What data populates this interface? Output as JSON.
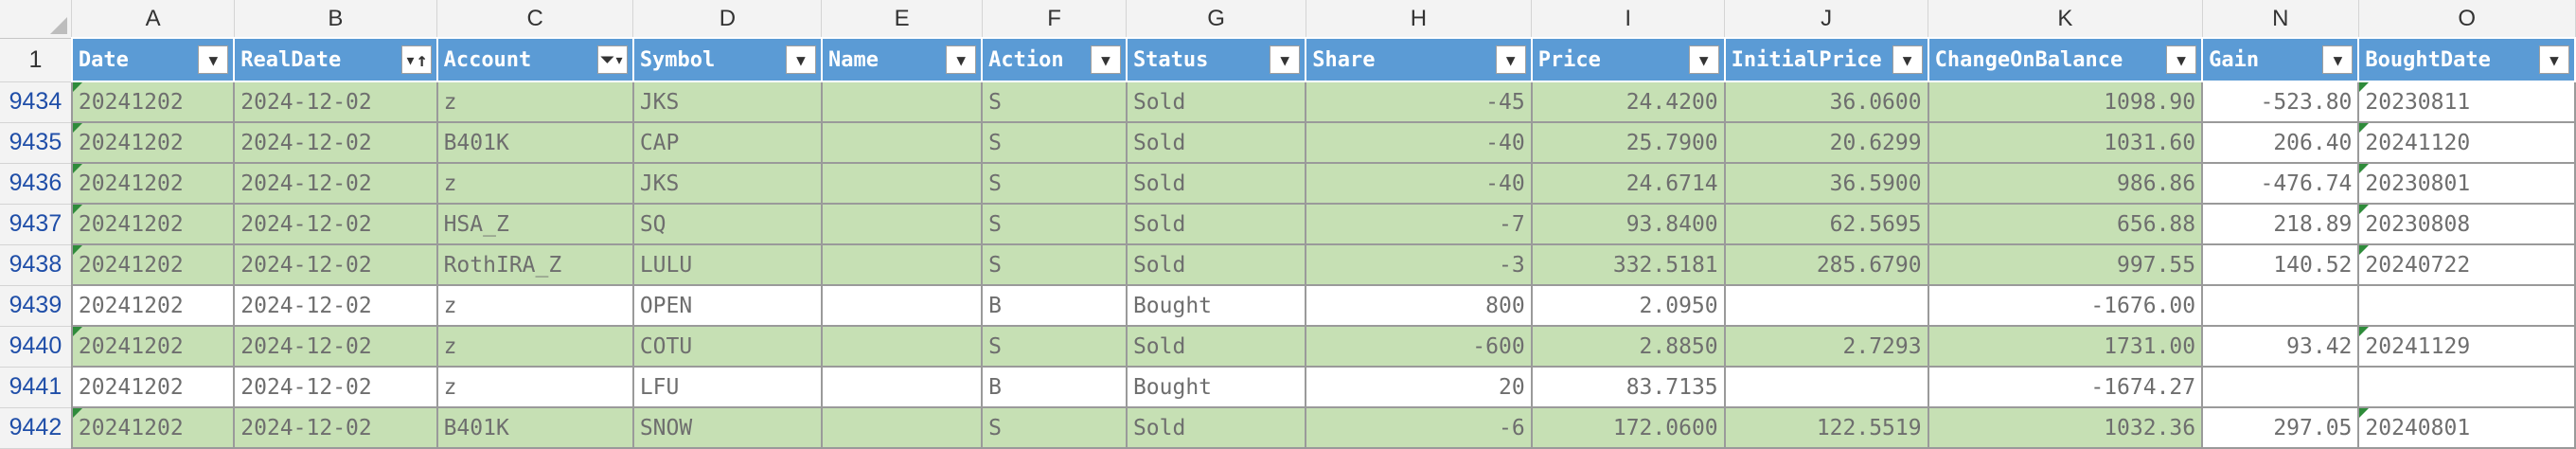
{
  "sheet": {
    "columns": [
      "A",
      "B",
      "C",
      "D",
      "E",
      "F",
      "G",
      "H",
      "I",
      "J",
      "K",
      "N",
      "O"
    ],
    "header_row_number": "1",
    "fields": [
      {
        "label": "Date",
        "button": "dropdown"
      },
      {
        "label": "RealDate",
        "button": "sort"
      },
      {
        "label": "Account",
        "button": "filter"
      },
      {
        "label": "Symbol",
        "button": "dropdown"
      },
      {
        "label": "Name",
        "button": "dropdown"
      },
      {
        "label": "Action",
        "button": "dropdown"
      },
      {
        "label": "Status",
        "button": "dropdown"
      },
      {
        "label": "Share",
        "button": "dropdown"
      },
      {
        "label": "Price",
        "button": "dropdown"
      },
      {
        "label": "InitialPrice",
        "button": "dropdown"
      },
      {
        "label": "ChangeOnBalance",
        "button": "dropdown"
      },
      {
        "label": "Gain",
        "button": "dropdown"
      },
      {
        "label": "BoughtDate",
        "button": "dropdown"
      }
    ],
    "rows": [
      {
        "num": "9434",
        "status_type": "sold",
        "cells": [
          "20241202",
          "2024-12-02",
          "z",
          "JKS",
          "",
          "S",
          "Sold",
          "-45",
          "24.4200",
          "36.0600",
          "1098.90",
          "-523.80",
          "20230811"
        ]
      },
      {
        "num": "9435",
        "status_type": "sold",
        "cells": [
          "20241202",
          "2024-12-02",
          "B401K",
          "CAP",
          "",
          "S",
          "Sold",
          "-40",
          "25.7900",
          "20.6299",
          "1031.60",
          "206.40",
          "20241120"
        ]
      },
      {
        "num": "9436",
        "status_type": "sold",
        "cells": [
          "20241202",
          "2024-12-02",
          "z",
          "JKS",
          "",
          "S",
          "Sold",
          "-40",
          "24.6714",
          "36.5900",
          "986.86",
          "-476.74",
          "20230801"
        ]
      },
      {
        "num": "9437",
        "status_type": "sold",
        "cells": [
          "20241202",
          "2024-12-02",
          "HSA_Z",
          "SQ",
          "",
          "S",
          "Sold",
          "-7",
          "93.8400",
          "62.5695",
          "656.88",
          "218.89",
          "20230808"
        ]
      },
      {
        "num": "9438",
        "status_type": "sold",
        "cells": [
          "20241202",
          "2024-12-02",
          "RothIRA_Z",
          "LULU",
          "",
          "S",
          "Sold",
          "-3",
          "332.5181",
          "285.6790",
          "997.55",
          "140.52",
          "20240722"
        ]
      },
      {
        "num": "9439",
        "status_type": "bought",
        "cells": [
          "20241202",
          "2024-12-02",
          "z",
          "OPEN",
          "",
          "B",
          "Bought",
          "800",
          "2.0950",
          "",
          "-1676.00",
          "",
          ""
        ]
      },
      {
        "num": "9440",
        "status_type": "sold",
        "cells": [
          "20241202",
          "2024-12-02",
          "z",
          "COTU",
          "",
          "S",
          "Sold",
          "-600",
          "2.8850",
          "2.7293",
          "1731.00",
          "93.42",
          "20241129"
        ]
      },
      {
        "num": "9441",
        "status_type": "bought",
        "cells": [
          "20241202",
          "2024-12-02",
          "z",
          "LFU",
          "",
          "B",
          "Bought",
          "20",
          "83.7135",
          "",
          "-1674.27",
          "",
          ""
        ]
      },
      {
        "num": "9442",
        "status_type": "sold",
        "cells": [
          "20241202",
          "2024-12-02",
          "B401K",
          "SNOW",
          "",
          "S",
          "Sold",
          "-6",
          "172.0600",
          "122.5519",
          "1032.36",
          "297.05",
          "20240801"
        ]
      }
    ]
  }
}
